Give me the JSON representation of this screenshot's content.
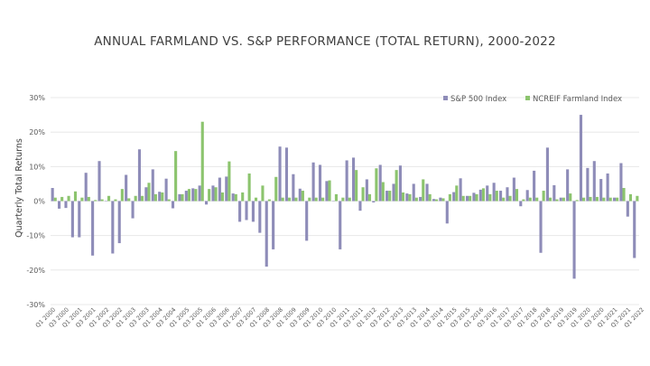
{
  "chart_data": {
    "type": "bar",
    "title": "ANNUAL FARMLAND VS. S&P PERFORMANCE (TOTAL RETURN), 2000-2022",
    "ylabel": "Quarterly Total Returns",
    "xlabel": "",
    "ylim": [
      -0.3,
      0.3
    ],
    "yticks": [
      "30%",
      "20%",
      "10%",
      "0%",
      "-10%",
      "-20%",
      "-30%"
    ],
    "grid": true,
    "legend": "top-right",
    "colors": {
      "sp500": "#8e8cb8",
      "farmland": "#8cc46e"
    },
    "x_tick_labels": [
      "Q1 2000",
      "Q3 2000",
      "Q1 2001",
      "Q3 2001",
      "Q1 2002",
      "Q3 2002",
      "Q1 2003",
      "Q3 2003",
      "Q1 2004",
      "Q3 2004",
      "Q1 2005",
      "Q3 2005",
      "Q1 2006",
      "Q3 2006",
      "Q1 2007",
      "Q3 2007",
      "Q1 2008",
      "Q3 2008",
      "Q1 2009",
      "Q3 2009",
      "Q1 2010",
      "Q3 2010",
      "Q1 2011",
      "Q3 2011",
      "Q1 2012",
      "Q3 2012",
      "Q1 2013",
      "Q3 2013",
      "Q1 2014",
      "Q3 2014",
      "Q1 2015",
      "Q3 2015",
      "Q1 2016",
      "Q3 2016",
      "Q1 2017",
      "Q3 2017",
      "Q1 2018",
      "Q3 2018",
      "Q1 2019",
      "Q3 2019",
      "Q1 2020",
      "Q3 2020",
      "Q1 2021",
      "Q3 2021",
      "Q1 2022"
    ],
    "series": [
      {
        "name": "S&P 500 Index",
        "values": [
          0.038,
          -0.022,
          -0.02,
          -0.105,
          -0.105,
          0.082,
          -0.158,
          0.116,
          -0.001,
          -0.152,
          -0.122,
          0.076,
          -0.05,
          0.15,
          0.04,
          0.092,
          0.027,
          0.065,
          -0.021,
          0.02,
          0.03,
          0.037,
          0.045,
          -0.01,
          0.045,
          0.068,
          0.071,
          0.022,
          -0.06,
          -0.055,
          -0.06,
          -0.092,
          -0.19,
          -0.14,
          0.158,
          0.155,
          0.078,
          0.036,
          -0.115,
          0.112,
          0.105,
          0.058,
          0.001,
          -0.14,
          0.118,
          0.126,
          -0.028,
          0.063,
          -0.004,
          0.105,
          0.03,
          0.05,
          0.103,
          0.022,
          0.05,
          0.012,
          0.05,
          0.006,
          0.01,
          -0.065,
          0.026,
          0.066,
          0.015,
          0.024,
          0.033,
          0.045,
          0.053,
          0.03,
          0.04,
          0.068,
          -0.015,
          0.032,
          0.088,
          -0.15,
          0.155,
          0.046,
          0.01,
          0.092,
          -0.225,
          0.25,
          0.096,
          0.116,
          0.064,
          0.08,
          0.01,
          0.11,
          -0.045,
          -0.165
        ],
        "x_index": [
          0,
          1,
          2,
          3,
          4,
          5,
          6,
          7,
          8,
          9,
          10,
          11,
          12,
          13,
          14,
          15,
          16,
          17,
          18,
          19,
          20,
          21,
          22,
          23,
          24,
          25,
          26,
          27,
          28,
          29,
          30,
          31,
          32,
          33,
          34,
          35,
          36,
          37,
          38,
          39,
          40,
          41,
          42,
          43,
          44,
          45,
          46,
          47,
          48,
          49,
          50,
          51,
          52,
          53,
          54,
          55,
          56,
          57,
          58,
          59,
          60,
          61,
          62,
          63,
          64,
          65,
          66,
          67,
          68,
          69,
          70,
          71,
          72,
          73,
          74,
          75,
          76,
          77,
          78,
          79,
          80,
          81,
          82,
          83,
          84,
          85,
          86,
          87
        ]
      },
      {
        "name": "NCREIF Farmland Index",
        "values": [
          0.01,
          0.012,
          0.015,
          0.028,
          0.01,
          0.012,
          0.003,
          0.005,
          0.015,
          0.005,
          0.035,
          0.008,
          0.015,
          0.015,
          0.053,
          0.02,
          0.025,
          0.005,
          0.145,
          0.02,
          0.035,
          0.035,
          0.23,
          0.035,
          0.04,
          0.025,
          0.115,
          0.02,
          0.025,
          0.08,
          0.01,
          0.045,
          0.005,
          0.07,
          0.01,
          0.01,
          0.01,
          0.03,
          0.01,
          0.01,
          0.01,
          0.06,
          0.02,
          0.01,
          0.01,
          0.09,
          0.04,
          0.02,
          0.095,
          0.055,
          0.03,
          0.09,
          0.025,
          0.02,
          0.01,
          0.063,
          0.02,
          0.005,
          0.008,
          0.02,
          0.045,
          0.015,
          0.015,
          0.02,
          0.037,
          0.02,
          0.03,
          0.01,
          0.015,
          0.035,
          0.005,
          0.01,
          0.01,
          0.03,
          0.01,
          0.005,
          0.01,
          0.022,
          0.003,
          0.01,
          0.012,
          0.012,
          0.01,
          0.01,
          0.01,
          0.038,
          0.02,
          0.015
        ],
        "x_index": [
          0,
          1,
          2,
          3,
          4,
          5,
          6,
          7,
          8,
          9,
          10,
          11,
          12,
          13,
          14,
          15,
          16,
          17,
          18,
          19,
          20,
          21,
          22,
          23,
          24,
          25,
          26,
          27,
          28,
          29,
          30,
          31,
          32,
          33,
          34,
          35,
          36,
          37,
          38,
          39,
          40,
          41,
          42,
          43,
          44,
          45,
          46,
          47,
          48,
          49,
          50,
          51,
          52,
          53,
          54,
          55,
          56,
          57,
          58,
          59,
          60,
          61,
          62,
          63,
          64,
          65,
          66,
          67,
          68,
          69,
          70,
          71,
          72,
          73,
          74,
          75,
          76,
          77,
          78,
          79,
          80,
          81,
          82,
          83,
          84,
          85,
          86,
          87
        ]
      }
    ]
  }
}
